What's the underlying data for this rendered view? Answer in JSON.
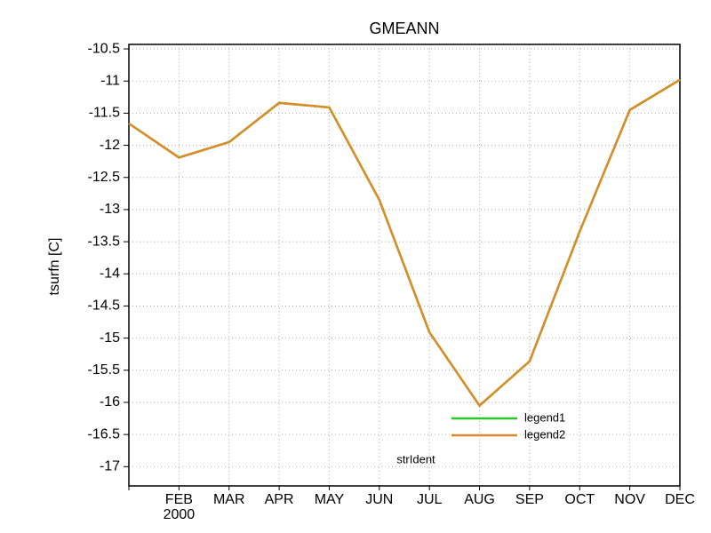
{
  "chart_data": {
    "type": "line",
    "title": "GMEANN",
    "y_label": "tsurfn [C]",
    "annotation": "strIdent",
    "categories": [
      null,
      "FEB",
      "MAR",
      "APR",
      "MAY",
      "JUN",
      "JUL",
      "AUG",
      "SEP",
      "OCT",
      "NOV",
      "DEC"
    ],
    "x_sublabel": "2000",
    "series": [
      {
        "name": "legend1",
        "color": "#22cc22",
        "values": [
          -11.66,
          -12.19,
          -11.95,
          -11.34,
          -11.41,
          -12.85,
          -14.91,
          -16.05,
          -15.36,
          -13.34,
          -11.45,
          -10.98
        ]
      },
      {
        "name": "legend2",
        "color": "#dd8a2a",
        "values": [
          -11.66,
          -12.19,
          -11.95,
          -11.34,
          -11.41,
          -12.85,
          -14.91,
          -16.05,
          -15.36,
          -13.34,
          -11.45,
          -10.98
        ]
      }
    ],
    "ylim": [
      -17.3,
      -10.43
    ],
    "yticks": [
      -10.5,
      -11,
      -11.5,
      -12,
      -12.5,
      -13,
      -13.5,
      -14,
      -14.5,
      -15,
      -15.5,
      -16,
      -16.5,
      -17
    ],
    "grid": true
  }
}
